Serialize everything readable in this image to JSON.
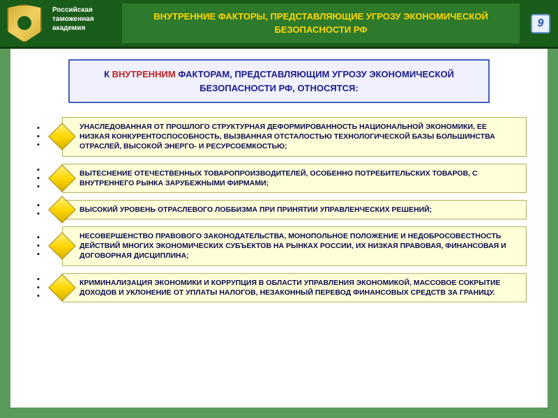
{
  "institution": "Российская таможенная академия",
  "slide_number": "9",
  "title": "ВНУТРЕННИЕ ФАКТОРЫ, ПРЕДСТАВЛЯЮЩИЕ УГРОЗУ ЭКОНОМИЧЕСКОЙ БЕЗОПАСНОСТИ РФ",
  "subtitle_prefix": "К ",
  "subtitle_emphasis": "ВНУТРЕННИМ",
  "subtitle_suffix": " ФАКТОРАМ, ПРЕДСТАВЛЯЮЩИМ УГРОЗУ ЭКОНОМИЧЕСКОЙ БЕЗОПАСНОСТИ РФ, ОТНОСЯТСЯ:",
  "factors": [
    "УНАСЛЕДОВАННАЯ ОТ ПРОШЛОГО СТРУКТУРНАЯ ДЕФОРМИРОВАННОСТЬ НАЦИОНАЛЬНОЙ ЭКОНОМИКИ, ЕЕ НИЗКАЯ КОНКУРЕНТОСПОСОБНОСТЬ, ВЫЗВАННАЯ ОТСТАЛОСТЬЮ ТЕХНОЛОГИЧЕСКОЙ БАЗЫ БОЛЬШИНСТВА ОТРАСЛЕЙ, ВЫСОКОЙ ЭНЕРГО- И РЕСУРСОЕМКОСТЬЮ;",
    "ВЫТЕСНЕНИЕ ОТЕЧЕСТВЕННЫХ ТОВАРОПРОИЗВОДИТЕЛЕЙ, ОСОБЕННО ПОТРЕБИТЕЛЬСКИХ ТОВАРОВ, С ВНУТРЕННЕГО РЫНКА ЗАРУБЕЖНЫМИ ФИРМАМИ;",
    "ВЫСОКИЙ УРОВЕНЬ ОТРАСЛЕВОГО ЛОББИЗМА ПРИ ПРИНЯТИИ УПРАВЛЕНЧЕСКИХ РЕШЕНИЙ;",
    "НЕСОВЕРШЕНСТВО ПРАВОВОГО ЗАКОНОДАТЕЛЬСТВА, МОНОПОЛЬНОЕ ПОЛОЖЕНИЕ И НЕДОБРОСОВЕСТНОСТЬ ДЕЙСТВИЙ МНОГИХ ЭКОНОМИЧЕСКИХ СУБЪЕКТОВ НА РЫНКАХ РОССИИ, ИХ НИЗКАЯ ПРАВОВАЯ, ФИНАНСОВАЯ И ДОГОВОРНАЯ ДИСЦИПЛИНА;",
    "КРИМИНАЛИЗАЦИЯ ЭКОНОМИКИ И КОРРУПЦИЯ В ОБЛАСТИ УПРАВЛЕНИЯ ЭКОНОМИКОЙ, МАССОВОЕ СОКРЫТИЕ ДОХОДОВ И УКЛОНЕНИЕ ОТ УПЛАТЫ НАЛОГОВ, НЕЗАКОННЫЙ ПЕРЕВОД ФИНАНСОВЫХ СРЕДСТВ ЗА ГРАНИЦУ."
  ],
  "colors": {
    "header_bg": "#1a5c1a",
    "title_bg": "#2d7a2d",
    "title_text": "#ffd700",
    "border_green": "#5a9a5a",
    "subtitle_bg": "#f0f0ff",
    "subtitle_border": "#4060c0",
    "emphasis_red": "#c02020",
    "subtitle_blue": "#1a1a8a",
    "factor_bg": "#ffffd8",
    "factor_border": "#b0b060",
    "factor_text": "#0a0a50",
    "diamond_gold": "#ffd700"
  }
}
